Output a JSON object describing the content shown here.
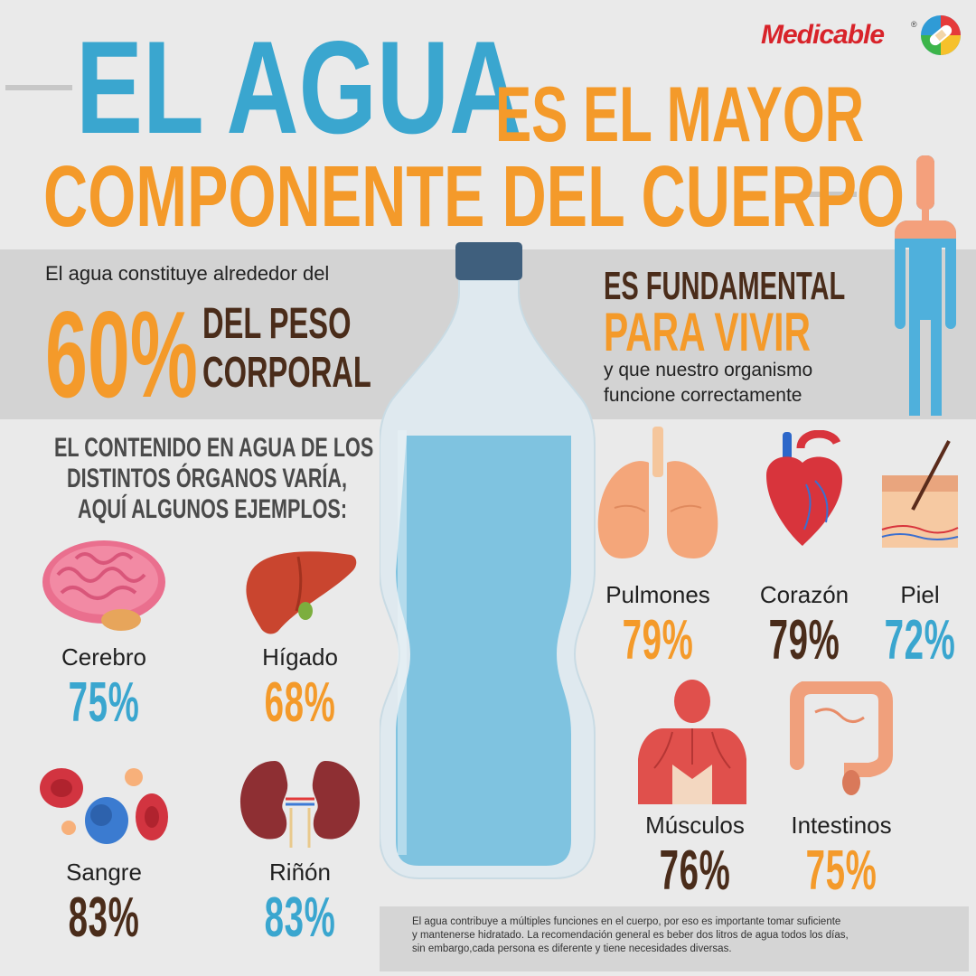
{
  "brand": {
    "name": "Medicable",
    "reg": "®"
  },
  "title": {
    "line1_big": "EL AGUA",
    "line1_rest": "ES EL MAYOR",
    "line2": "COMPONENTE DEL CUERPO"
  },
  "band": {
    "intro": "El agua constituye alrededor del",
    "percent": "60%",
    "peso_line1": "DEL PESO",
    "peso_line2": "CORPORAL",
    "fund_line1": "ES FUNDAMENTAL",
    "fund_line2": "PARA VIVIR",
    "fund_sub1": "y que nuestro organismo",
    "fund_sub2": "funcione correctamente"
  },
  "organs_heading": [
    "EL CONTENIDO EN AGUA DE LOS",
    "DISTINTOS ÓRGANOS VARÍA,",
    "AQUÍ ALGUNOS EJEMPLOS:"
  ],
  "organs": {
    "cerebro": {
      "name": "Cerebro",
      "pct": "75%"
    },
    "higado": {
      "name": "Hígado",
      "pct": "68%"
    },
    "sangre": {
      "name": "Sangre",
      "pct": "83%"
    },
    "rinon": {
      "name": "Riñón",
      "pct": "83%"
    },
    "pulmones": {
      "name": "Pulmones",
      "pct": "79%"
    },
    "corazon": {
      "name": "Corazón",
      "pct": "79%"
    },
    "piel": {
      "name": "Piel",
      "pct": "72%"
    },
    "musculos": {
      "name": "Músculos",
      "pct": "76%"
    },
    "intestinos": {
      "name": "Intestinos",
      "pct": "75%"
    }
  },
  "note": [
    "El agua contribuye a múltiples funciones en el cuerpo, por eso es importante tomar suficiente",
    "y mantenerse hidratado. La recomendación general es beber dos litros de agua todos los días,",
    "sin embargo,cada persona es diferente y tiene necesidades diversas."
  ],
  "colors": {
    "blue": "#3aa6cf",
    "orange": "#f49a2a",
    "brown": "#4a2c1a",
    "band": "#d3d3d3",
    "bg": "#eaeaea"
  }
}
